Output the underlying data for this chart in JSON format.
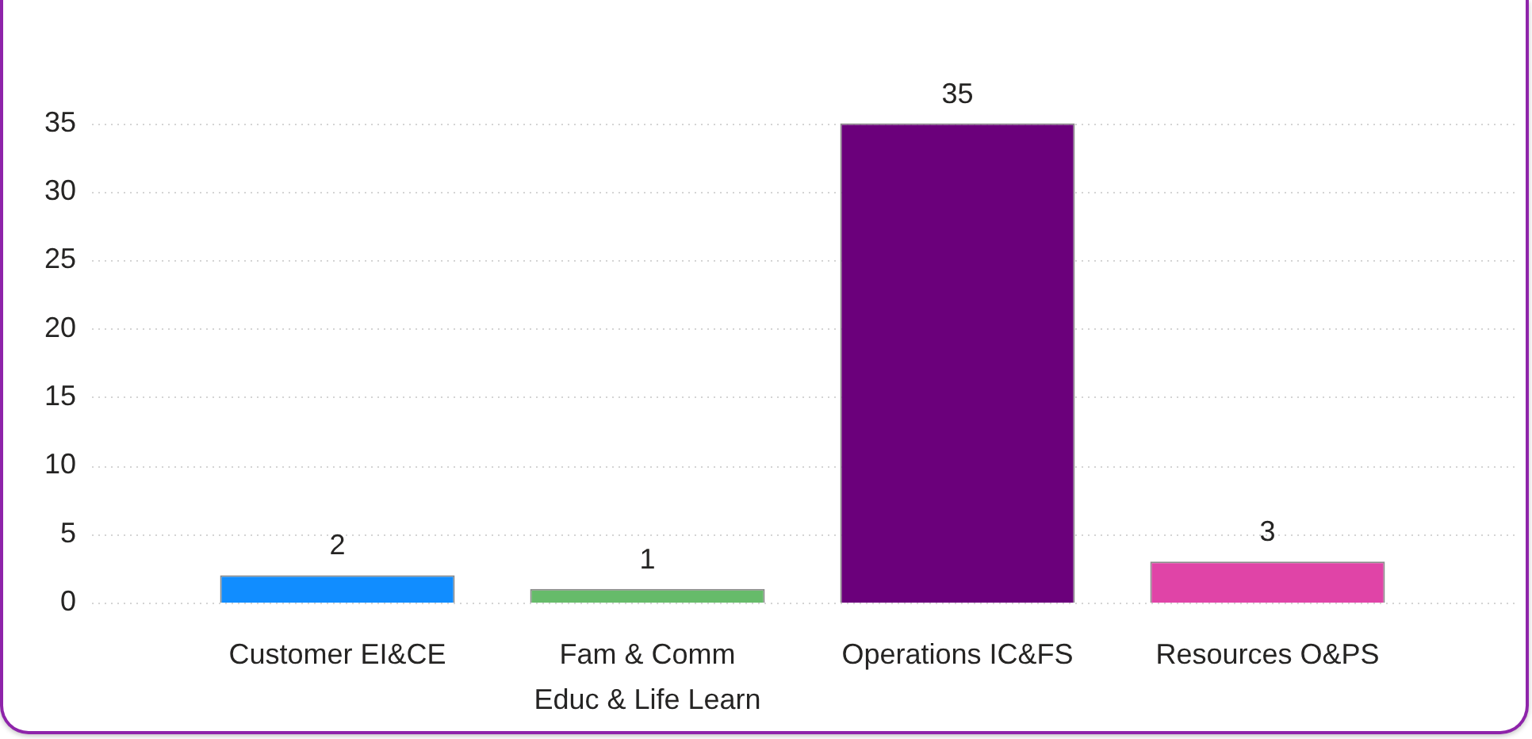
{
  "chart_data": {
    "type": "bar",
    "categories": [
      "Customer EI&CE",
      "Fam & Comm Educ & Life Learn",
      "Operations IC&FS",
      "Resources O&PS"
    ],
    "values": [
      2,
      1,
      35,
      3
    ],
    "colors": [
      "#118dff",
      "#66bb6a",
      "#6b007b",
      "#e044a7"
    ],
    "ylim": [
      0,
      35
    ],
    "yticks": [
      0,
      5,
      10,
      15,
      20,
      25,
      30,
      35
    ],
    "grid": "y",
    "data_labels": true
  }
}
